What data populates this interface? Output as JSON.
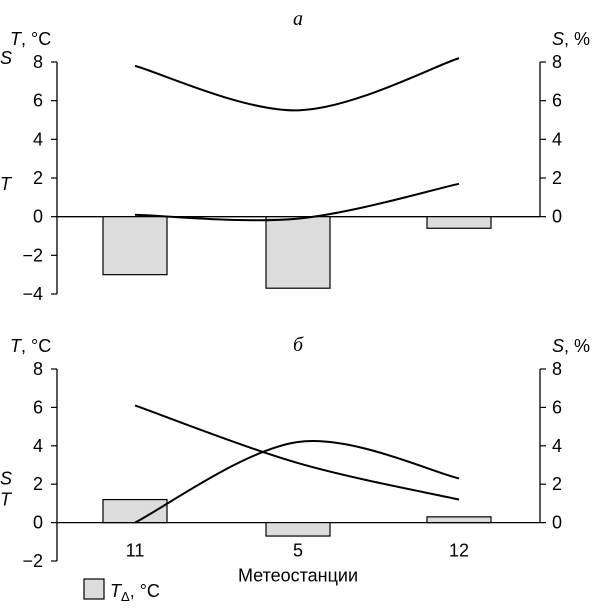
{
  "chart_data": [
    {
      "type": "bar",
      "title": "а",
      "categories": [
        "11",
        "5",
        "12"
      ],
      "ylabel_left": "T, °C",
      "ylabel_right": "S, %",
      "ylim_left": [
        -4,
        8
      ],
      "yticks_left": [
        "−4",
        "−2",
        "0",
        "2",
        "4",
        "6",
        "8"
      ],
      "ylim_right": [
        0,
        8
      ],
      "yticks_right": [
        "0",
        "2",
        "4",
        "6",
        "8"
      ],
      "series": [
        {
          "name": "T_Δ, °C",
          "kind": "bar",
          "axis": "left",
          "values": [
            -3.0,
            -3.7,
            -0.6
          ],
          "color": "#dcdcdc"
        },
        {
          "name": "S",
          "kind": "line",
          "axis": "right",
          "values": [
            7.8,
            5.5,
            8.2
          ],
          "color": "#000000"
        },
        {
          "name": "T",
          "kind": "line",
          "axis": "left",
          "values": [
            0.1,
            -0.1,
            1.7
          ],
          "color": "#000000"
        }
      ]
    },
    {
      "type": "bar",
      "title": "б",
      "categories": [
        "11",
        "5",
        "12"
      ],
      "xlabel": "Метеостанции",
      "ylabel_left": "T, °C",
      "ylabel_right": "S, %",
      "ylim_left": [
        -2,
        8
      ],
      "yticks_left": [
        "−2",
        "0",
        "2",
        "4",
        "6",
        "8"
      ],
      "ylim_right": [
        0,
        8
      ],
      "yticks_right": [
        "0",
        "2",
        "4",
        "6",
        "8"
      ],
      "series": [
        {
          "name": "T_Δ, °C",
          "kind": "bar",
          "axis": "left",
          "values": [
            1.2,
            -0.7,
            0.3
          ],
          "color": "#dcdcdc"
        },
        {
          "name": "S",
          "kind": "line",
          "axis": "right",
          "values": [
            0.0,
            4.2,
            2.3
          ],
          "color": "#000000"
        },
        {
          "name": "T",
          "kind": "line",
          "axis": "left",
          "values": [
            6.1,
            3.1,
            1.2
          ],
          "color": "#000000"
        }
      ]
    }
  ],
  "legend": {
    "symbol": "T",
    "subscript": "Δ",
    "unit": ", °C"
  }
}
